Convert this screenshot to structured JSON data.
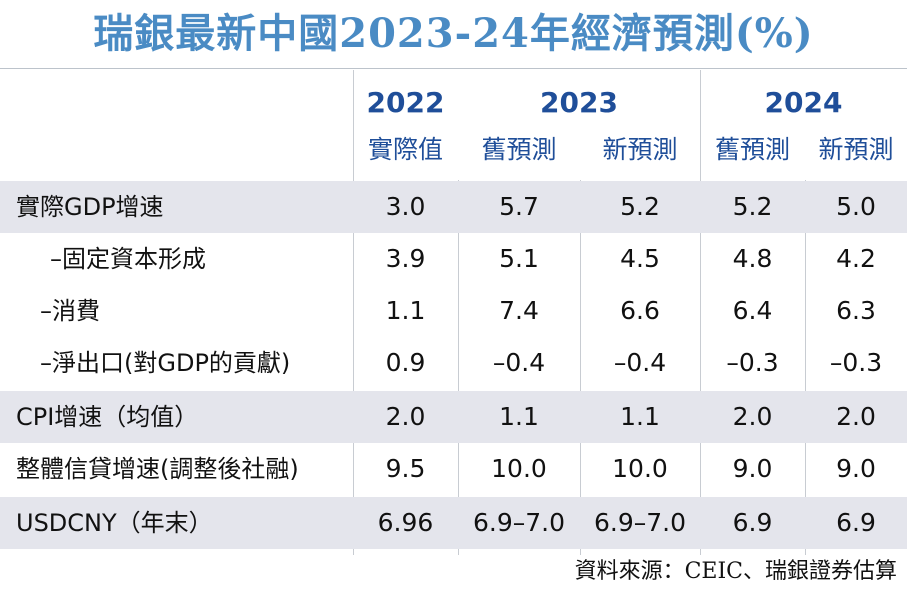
{
  "title": "瑞銀最新中國2023-24年經濟預測(%)",
  "header": {
    "years": [
      "2022",
      "2023",
      "2024"
    ],
    "sub_labels": [
      "實際值",
      "舊預測",
      "新預測",
      "舊預測",
      "新預測"
    ]
  },
  "rows": [
    {
      "label": "實際GDP增速",
      "values": [
        "3.0",
        "5.7",
        "5.2",
        "5.2",
        "5.0"
      ]
    },
    {
      "label": "–固定資本形成",
      "values": [
        "3.9",
        "5.1",
        "4.5",
        "4.8",
        "4.2"
      ]
    },
    {
      "label": "–消費",
      "values": [
        "1.1",
        "7.4",
        "6.6",
        "6.4",
        "6.3"
      ]
    },
    {
      "label": "–淨出口(對GDP的貢獻)",
      "values": [
        "0.9",
        "–0.4",
        "–0.4",
        "–0.3",
        "–0.3"
      ]
    },
    {
      "label": "CPI增速（均值）",
      "values": [
        "2.0",
        "1.1",
        "1.1",
        "2.0",
        "2.0"
      ]
    },
    {
      "label": "整體信貸增速(調整後社融)",
      "values": [
        "9.5",
        "10.0",
        "10.0",
        "9.0",
        "9.0"
      ]
    },
    {
      "label": "USDCNY（年末）",
      "values": [
        "6.96",
        "6.9–7.0",
        "6.9–7.0",
        "6.9",
        "6.9"
      ]
    }
  ],
  "source": "資料來源：CEIC、瑞銀證券估算"
}
